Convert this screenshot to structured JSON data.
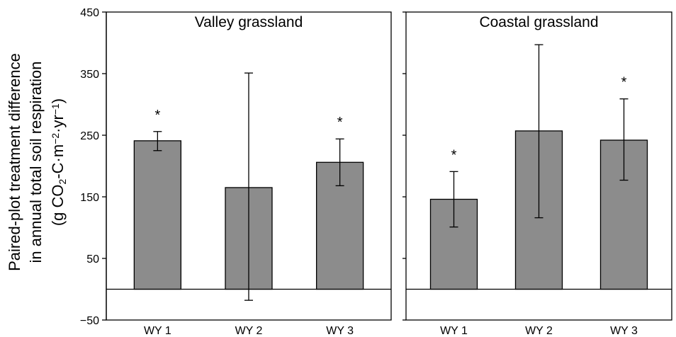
{
  "chart_data": {
    "type": "bar",
    "ylabel_lines": [
      "Paired-plot treatment difference",
      "in annual total soil respiration"
    ],
    "ylabel_unit": {
      "open": "(g CO",
      "sub": "2",
      "mid1": "-C·m",
      "sup1": "−2",
      "mid2": "·yr",
      "sup2": "−1",
      "close": ")"
    },
    "ylim": [
      -50,
      450
    ],
    "yticks": [
      -50,
      50,
      150,
      250,
      350,
      450
    ],
    "ytick_labels": [
      "−50",
      "50",
      "150",
      "250",
      "350",
      "450"
    ],
    "bar_color": "#8c8c8c",
    "significance_marker": "*",
    "panels": [
      {
        "title": "Valley grassland",
        "categories": [
          "WY 1",
          "WY 2",
          "WY 3"
        ],
        "values": [
          241,
          165,
          206
        ],
        "err_low": [
          225,
          -18,
          168
        ],
        "err_high": [
          256,
          351,
          244
        ],
        "significant": [
          true,
          false,
          true
        ]
      },
      {
        "title": "Coastal grassland",
        "categories": [
          "WY 1",
          "WY 2",
          "WY 3"
        ],
        "values": [
          146,
          257,
          242
        ],
        "err_low": [
          101,
          116,
          177
        ],
        "err_high": [
          191,
          397,
          309
        ],
        "significant": [
          true,
          false,
          true
        ]
      }
    ]
  }
}
